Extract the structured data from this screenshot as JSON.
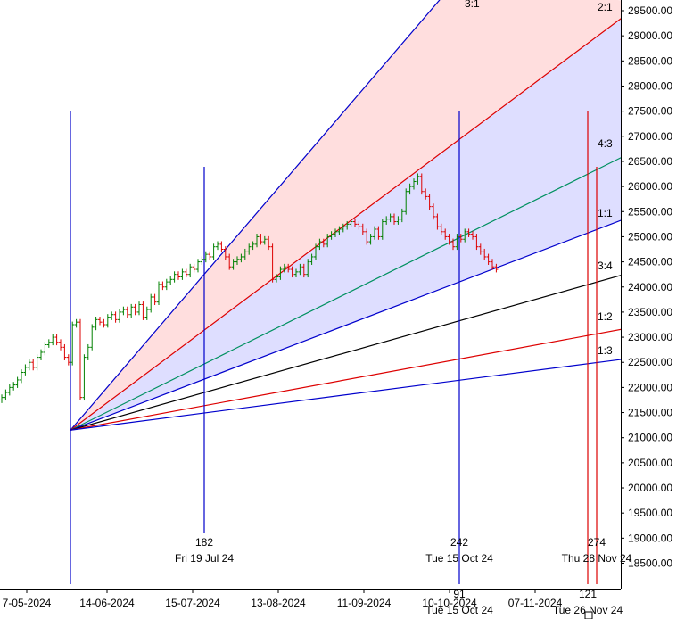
{
  "chart_data": {
    "type": "bar",
    "title": "",
    "xlabel": "",
    "ylabel": "",
    "ylim": [
      18200,
      29700
    ],
    "y_ticks": [
      18500,
      19000,
      19500,
      20000,
      20500,
      21000,
      21500,
      22000,
      22500,
      23000,
      23500,
      24000,
      24500,
      25000,
      25500,
      26000,
      26500,
      27000,
      27500,
      28000,
      28500,
      29000,
      29500
    ],
    "y_tick_labels": [
      "18500.00",
      "19000.00",
      "19500.00",
      "20000.00",
      "20500.00",
      "21000.00",
      "21500.00",
      "22000.00",
      "22500.00",
      "23000.00",
      "23500.00",
      "24000.00",
      "24500.00",
      "25000.00",
      "25500.00",
      "26000.00",
      "26500.00",
      "27000.00",
      "27500.00",
      "28000.00",
      "28500.00",
      "29000.00",
      "29500.00"
    ],
    "x_tick_labels": [
      "7-05-2024",
      "14-06-2024",
      "15-07-2024",
      "13-08-2024",
      "11-09-2024",
      "10-10-2024",
      "07-11-2024"
    ],
    "price_series": {
      "name": "",
      "closes": [
        21800,
        21900,
        22000,
        22050,
        22150,
        22300,
        22400,
        22500,
        22400,
        22600,
        22700,
        22850,
        22900,
        23000,
        22900,
        22800,
        22600,
        22500,
        23250,
        23300,
        21800,
        22600,
        22800,
        23200,
        23350,
        23300,
        23250,
        23400,
        23450,
        23350,
        23500,
        23550,
        23450,
        23600,
        23500,
        23650,
        23400,
        23550,
        23800,
        23700,
        24050,
        24000,
        24100,
        24150,
        24250,
        24200,
        24300,
        24250,
        24400,
        24350,
        24500,
        24550,
        24650,
        24600,
        24800,
        24850,
        24750,
        24600,
        24400,
        24500,
        24550,
        24600,
        24700,
        24800,
        24850,
        25000,
        24900,
        24950,
        24800,
        24150,
        24200,
        24350,
        24400,
        24350,
        24250,
        24300,
        24400,
        24250,
        24500,
        24600,
        24800,
        24900,
        24850,
        25000,
        25050,
        25100,
        25150,
        25200,
        25250,
        25300,
        25250,
        25200,
        25100,
        24900,
        25000,
        25150,
        25000,
        25300,
        25350,
        25400,
        25300,
        25350,
        25500,
        25900,
        26000,
        26100,
        26200,
        25900,
        25800,
        25600,
        25400,
        25200,
        25100,
        25000,
        24900,
        24800,
        25000,
        24950,
        25100,
        25050,
        25000,
        24800,
        24700,
        24600,
        24500,
        24400,
        24350
      ]
    },
    "gann_fan": {
      "origin_value": 21150,
      "rays": [
        {
          "label": "3:1",
          "color": "#0000cc"
        },
        {
          "label": "2:1",
          "color": "#dd0000"
        },
        {
          "label": "4:3",
          "color": "#009060"
        },
        {
          "label": "1:1",
          "color": "#0000cc"
        },
        {
          "label": "3:4",
          "color": "#000000"
        },
        {
          "label": "1:2",
          "color": "#dd0000"
        },
        {
          "label": "1:3",
          "color": "#0000cc"
        }
      ]
    },
    "markers": [
      {
        "count": "182",
        "date": "Fri 19 Jul 24",
        "color": "#0000cc"
      },
      {
        "count": "242",
        "date": "Tue 15 Oct 24",
        "color": "#0000cc"
      },
      {
        "count": "274",
        "date": "Thu 28 Nov 24",
        "color": "#dd0000"
      },
      {
        "count": "91",
        "date": "Tue 15 Oct 24",
        "color": "#0000cc"
      },
      {
        "count": "121",
        "date": "Tue 26 Nov 24",
        "color": "#dd0000"
      }
    ],
    "colors": {
      "up_bar": "#008000",
      "down_bar": "#dd0000",
      "fan_upper_fill": "#ffdede",
      "fan_lower_fill": "#dedeff"
    }
  }
}
